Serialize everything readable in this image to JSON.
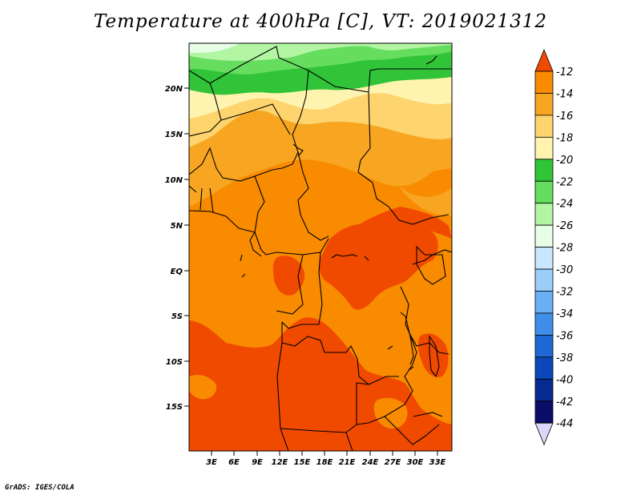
{
  "title": "Temperature at 400hPa [C], VT: 2019021312",
  "credit": "GrADS: IGES/COLA",
  "map": {
    "lat_labels": [
      "20N",
      "15N",
      "10N",
      "5N",
      "EQ",
      "5S",
      "10S",
      "15S"
    ],
    "lon_labels": [
      "3E",
      "6E",
      "9E",
      "12E",
      "15E",
      "18E",
      "21E",
      "24E",
      "27E",
      "30E",
      "33E"
    ]
  },
  "colorbar": {
    "labels": [
      "-12",
      "-14",
      "-16",
      "-18",
      "-20",
      "-22",
      "-24",
      "-26",
      "-28",
      "-30",
      "-32",
      "-34",
      "-36",
      "-38",
      "-40",
      "-42",
      "-44"
    ],
    "colors": [
      "#f04a00",
      "#f88b00",
      "#f8a622",
      "#fdd46e",
      "#fff3b0",
      "#31c438",
      "#66dd5f",
      "#b2f5a3",
      "#e6fee6",
      "#c9e7ff",
      "#9ccdfa",
      "#6ab0f4",
      "#3f8ee9",
      "#1f67d3",
      "#0a48bb",
      "#082b92",
      "#0c0d6a",
      "#dcd7f8"
    ]
  },
  "field": {
    "colors": {
      "t14": "#f04a00",
      "t16": "#f88b00",
      "t18": "#f8a622",
      "t20": "#fdd46e",
      "t22": "#fff3b0",
      "t24": "#31c438",
      "t26": "#66dd5f",
      "t28": "#b2f5a3",
      "t30": "#e6fee6"
    }
  }
}
